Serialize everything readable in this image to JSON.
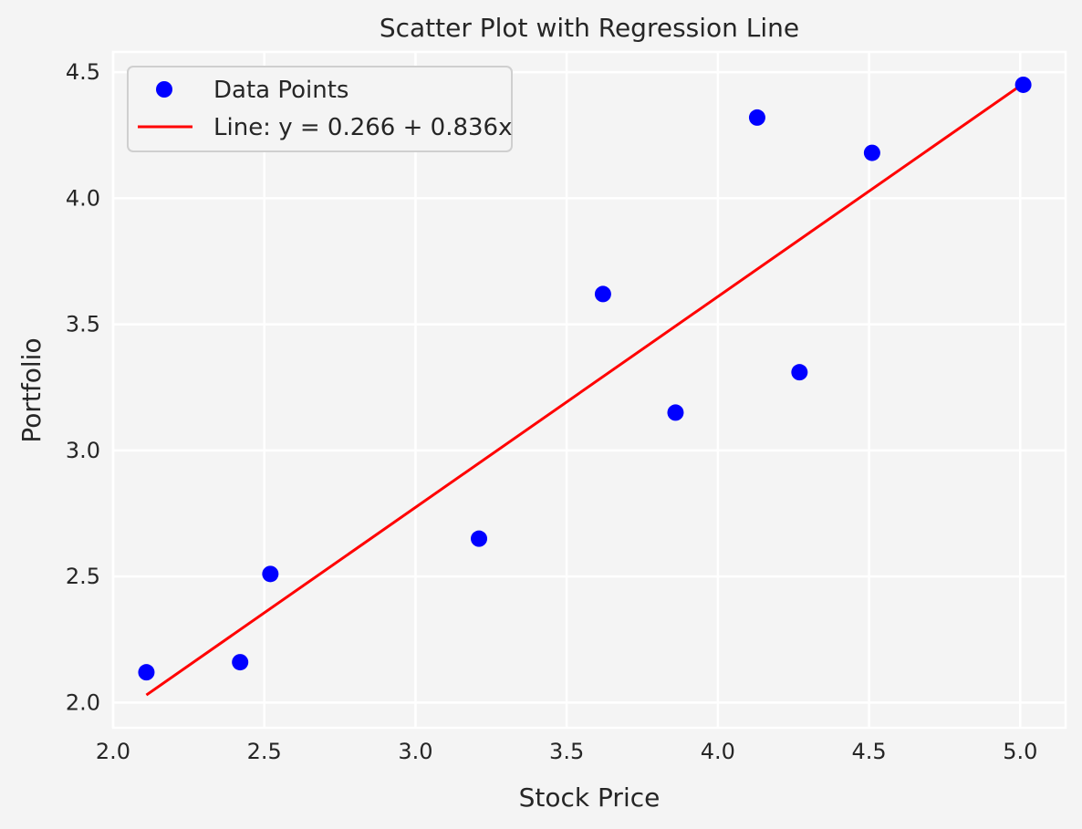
{
  "chart_data": {
    "type": "scatter",
    "title": "Scatter Plot with Regression Line",
    "xlabel": "Stock Price",
    "ylabel": "Portfolio",
    "xlim": [
      2.0,
      5.15
    ],
    "ylim": [
      1.9,
      4.58
    ],
    "xticks": [
      2.0,
      2.5,
      3.0,
      3.5,
      4.0,
      4.5,
      5.0
    ],
    "yticks": [
      2.0,
      2.5,
      3.0,
      3.5,
      4.0,
      4.5
    ],
    "xtick_labels": [
      "2.0",
      "2.5",
      "3.0",
      "3.5",
      "4.0",
      "4.5",
      "5.0"
    ],
    "ytick_labels": [
      "2.0",
      "2.5",
      "3.0",
      "3.5",
      "4.0",
      "4.5"
    ],
    "grid": true,
    "legend_position": "top-left",
    "series": [
      {
        "name": "Data Points",
        "kind": "scatter",
        "color": "#0000ff",
        "x": [
          2.11,
          2.42,
          2.52,
          3.21,
          3.62,
          3.86,
          4.13,
          4.27,
          4.51,
          5.01
        ],
        "y": [
          2.12,
          2.16,
          2.51,
          2.65,
          3.62,
          3.15,
          4.32,
          3.31,
          4.18,
          4.45
        ]
      },
      {
        "name": "Line: y = 0.266 + 0.836x",
        "kind": "line",
        "color": "#ff0000",
        "intercept": 0.266,
        "slope": 0.836,
        "x": [
          2.11,
          5.01
        ]
      }
    ]
  },
  "colors": {
    "background": "#f4f4f4",
    "grid": "#ffffff",
    "text": "#262626"
  }
}
